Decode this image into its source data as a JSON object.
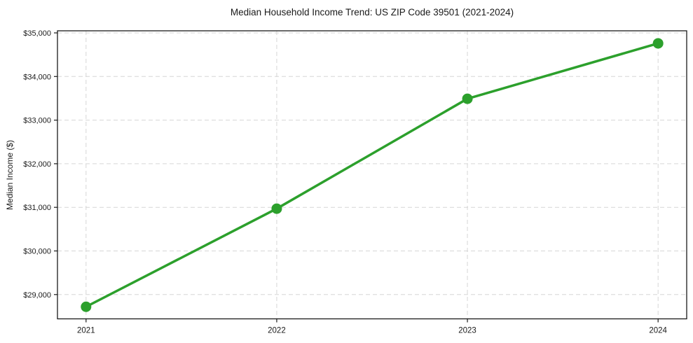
{
  "figure": {
    "background_color": "#ffffff"
  },
  "chart_data": {
    "type": "line",
    "title": "Median Household Income Trend: US ZIP Code 39501 (2021-2024)",
    "xlabel": "",
    "ylabel": "Median Income ($)",
    "x": [
      2021,
      2022,
      2023,
      2024
    ],
    "x_tick_labels": [
      "2021",
      "2022",
      "2023",
      "2024"
    ],
    "series": [
      {
        "name": "median-household-income",
        "values": [
          28720,
          30970,
          33490,
          34760
        ],
        "color": "#2ca02c"
      }
    ],
    "y_ticks": [
      29000,
      30000,
      31000,
      32000,
      33000,
      34000,
      35000
    ],
    "y_tick_labels": [
      "$29,000",
      "$30,000",
      "$31,000",
      "$32,000",
      "$33,000",
      "$34,000",
      "$35,000"
    ],
    "xlim": [
      2020.85,
      2024.15
    ],
    "ylim": [
      28443,
      35048
    ],
    "grid": true,
    "grid_style": "dashed",
    "legend": false,
    "colors": {
      "line": "#2ca02c",
      "marker": "#2ca02c",
      "grid": "#d6d6d6",
      "axis": "#1a1a1a",
      "text": "#1a1a1a",
      "background": "#ffffff"
    }
  }
}
